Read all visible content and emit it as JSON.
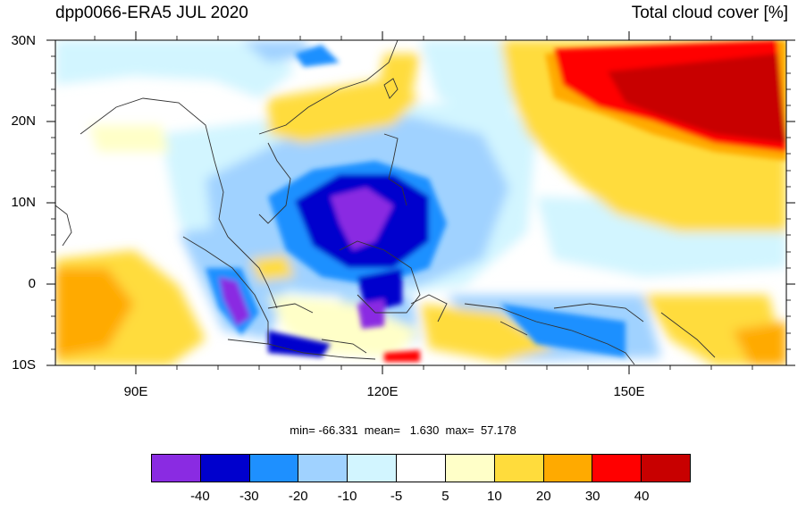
{
  "title_left": "dpp0066-ERA5 JUL 2020",
  "title_right": "Total cloud cover [%]",
  "lat_labels": [
    "30N",
    "20N",
    "10N",
    "0",
    "10S"
  ],
  "lon_labels": [
    "90E",
    "120E",
    "150E"
  ],
  "stats": {
    "min_label": "min=",
    "min": "-66.331",
    "mean_label": "mean=",
    "mean": "1.630",
    "max_label": "max=",
    "max": "57.178"
  },
  "colorbar": {
    "colors": [
      "#8a2be2",
      "#0000cd",
      "#1e90ff",
      "#a0d2ff",
      "#d2f5ff",
      "#ffffff",
      "#ffffc8",
      "#ffdc3c",
      "#ffaa00",
      "#ff0000",
      "#c80000"
    ],
    "labels": [
      "-40",
      "-30",
      "-20",
      "-10",
      "-5",
      "5",
      "10",
      "20",
      "30",
      "40"
    ]
  }
}
